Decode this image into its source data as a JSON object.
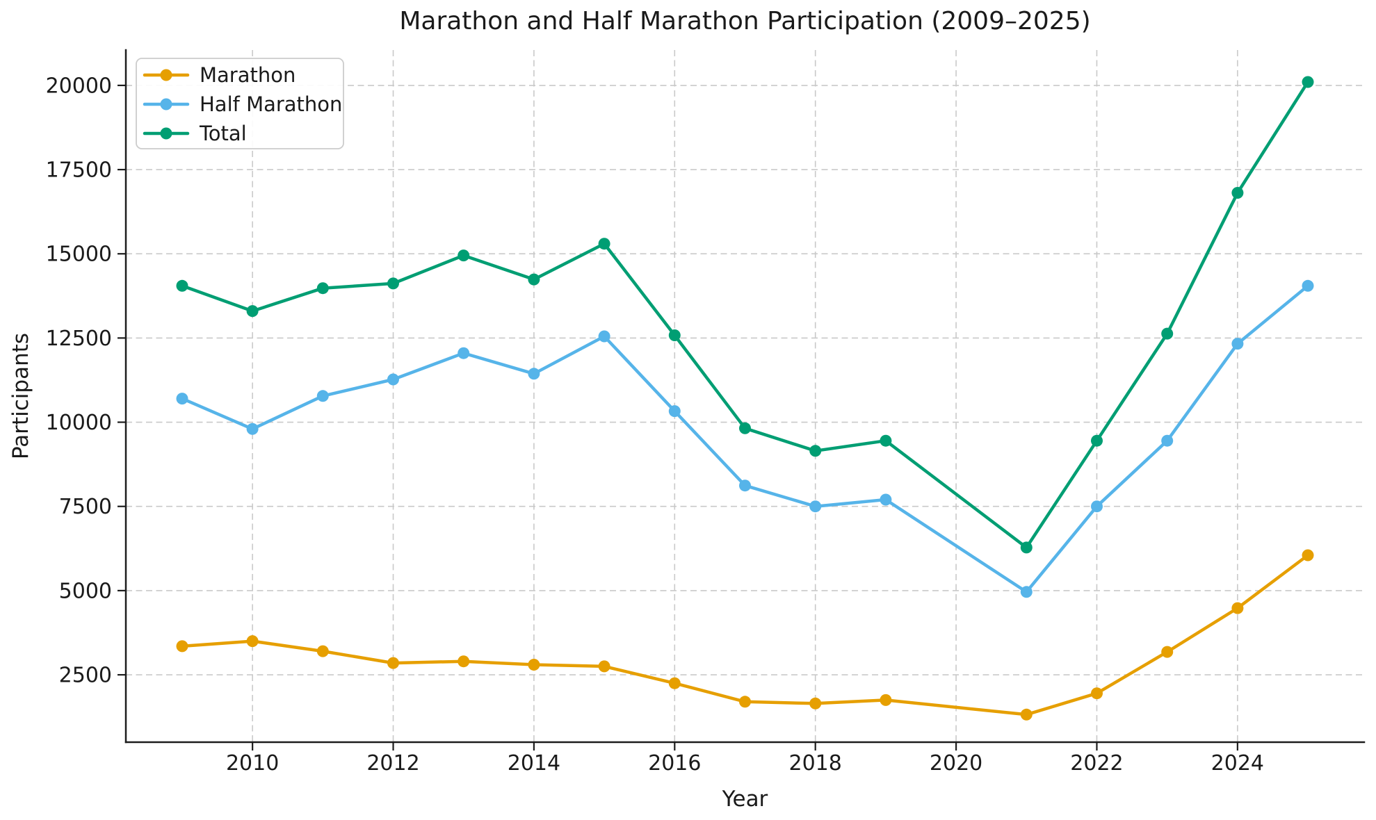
{
  "figure": {
    "background": "#ffffff",
    "text_color": "#1a1a1a",
    "spine_color": "#1d1d1d",
    "grid_color": "#c9c9c9",
    "legend_border_color": "#cccccc"
  },
  "chart_data": {
    "type": "line",
    "title": "Marathon and Half Marathon Participation (2009–2025)",
    "xlabel": "Year",
    "ylabel": "Participants",
    "x": [
      2009,
      2010,
      2011,
      2012,
      2013,
      2014,
      2015,
      2016,
      2017,
      2018,
      2019,
      2021,
      2022,
      2023,
      2024,
      2025
    ],
    "missing_years": [
      2020
    ],
    "series": [
      {
        "name": "Marathon",
        "color": "#E69F00",
        "values": [
          3350,
          3500,
          3200,
          2850,
          2900,
          2800,
          2750,
          2250,
          1700,
          1650,
          1750,
          1320,
          1950,
          3180,
          4480,
          6050
        ]
      },
      {
        "name": "Half Marathon",
        "color": "#56B4E9",
        "values": [
          10700,
          9800,
          10780,
          11270,
          12050,
          11440,
          12550,
          10330,
          8120,
          7500,
          7700,
          4960,
          7500,
          9450,
          12330,
          14050
        ]
      },
      {
        "name": "Total",
        "color": "#009E73",
        "values": [
          14050,
          13300,
          13980,
          14120,
          14950,
          14240,
          15300,
          12580,
          9820,
          9150,
          9450,
          6280,
          9450,
          12630,
          16810,
          20100
        ]
      }
    ],
    "x_ticks": [
      2010,
      2012,
      2014,
      2016,
      2018,
      2020,
      2022,
      2024
    ],
    "y_ticks": [
      2500,
      5000,
      7500,
      10000,
      12500,
      15000,
      17500,
      20000
    ],
    "xlim": [
      2008.2,
      2025.8
    ],
    "ylim": [
      500,
      21050
    ],
    "grid": true,
    "grid_style": "dashed",
    "legend_position": "upper left",
    "marker": "circle",
    "legend_labels": [
      "Marathon",
      "Half Marathon",
      "Total"
    ]
  }
}
